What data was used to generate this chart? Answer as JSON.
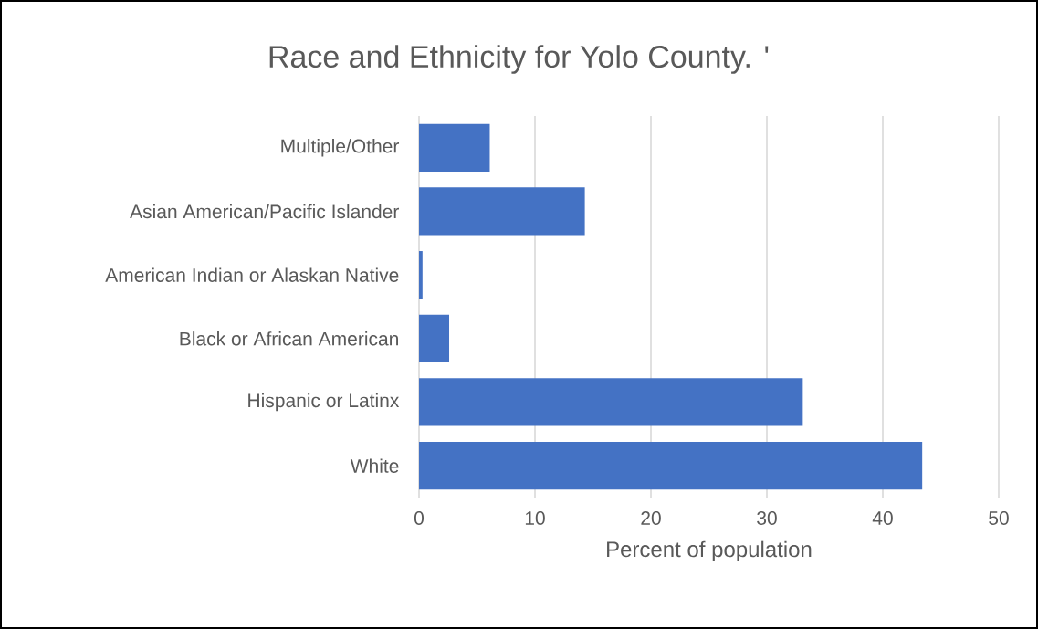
{
  "chart_data": {
    "type": "bar",
    "orientation": "horizontal",
    "title": "Race and Ethnicity for Yolo County. '",
    "xlabel": "Percent of population",
    "categories": [
      "Multiple/Other",
      "Asian American/Pacific Islander",
      "American Indian or Alaskan Native",
      "Black or African American",
      "Hispanic or Latinx",
      "White"
    ],
    "values": [
      6.1,
      14.3,
      0.3,
      2.6,
      33.1,
      43.4
    ],
    "color": "#4472c4",
    "xlim": [
      0,
      50
    ],
    "xticks": [
      0,
      10,
      20,
      30,
      40,
      50
    ],
    "grid": "x"
  }
}
